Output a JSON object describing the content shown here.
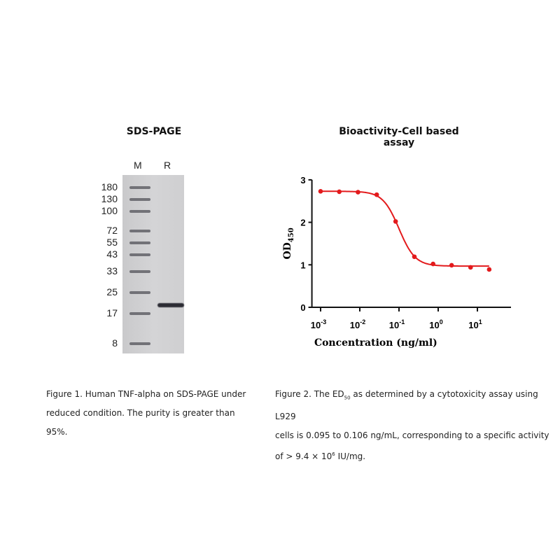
{
  "gel": {
    "title": "SDS-PAGE",
    "lanes": [
      "M",
      "R"
    ],
    "markers": [
      {
        "kda": "180"
      },
      {
        "kda": "130"
      },
      {
        "kda": "100"
      },
      {
        "kda": "72"
      },
      {
        "kda": "55"
      },
      {
        "kda": "43"
      },
      {
        "kda": "33"
      },
      {
        "kda": "25"
      },
      {
        "kda": "17"
      },
      {
        "kda": "8"
      }
    ],
    "sample_band_kda": 20,
    "caption": [
      "Figure 1. Human TNF-alpha on SDS-PAGE under",
      "reduced condition. The purity is greater than",
      "95%."
    ]
  },
  "chart_data": {
    "type": "scatter",
    "title": "Bioactivity-Cell based assay",
    "xlabel": "Concentration (ng/ml)",
    "ylabel": "OD",
    "ylabel_sub": "450",
    "xscale": "log",
    "xlim": [
      0.0006,
      60
    ],
    "ylim": [
      0,
      3
    ],
    "yticks": [
      "0",
      "1",
      "2",
      "3"
    ],
    "xticks": [
      {
        "base": "10",
        "exp": "-3"
      },
      {
        "base": "10",
        "exp": "-2"
      },
      {
        "base": "10",
        "exp": "-1"
      },
      {
        "base": "10",
        "exp": "0"
      },
      {
        "base": "10",
        "exp": "1"
      }
    ],
    "x": [
      0.001,
      0.003,
      0.009,
      0.027,
      0.082,
      0.247,
      0.74,
      2.2,
      6.7,
      20
    ],
    "y": [
      2.73,
      2.72,
      2.71,
      2.65,
      2.02,
      1.19,
      1.02,
      0.99,
      0.94,
      0.89
    ],
    "fit": {
      "model": "4PL",
      "top": 2.73,
      "bottom": 0.97,
      "ec50": 0.1,
      "hill": 2.1
    },
    "color": "#e31a1c"
  },
  "caption2": {
    "l1a": "Figure 2. The ED",
    "l1sub": "50",
    "l1b": " as determined by a cytotoxicity assay using L929",
    "l2": "cells is 0.095 to 0.106 ng/mL, corresponding to a specific activity",
    "l3a": "of > 9.4 × 10",
    "l3sup": "6",
    "l3b": " IU/mg."
  }
}
